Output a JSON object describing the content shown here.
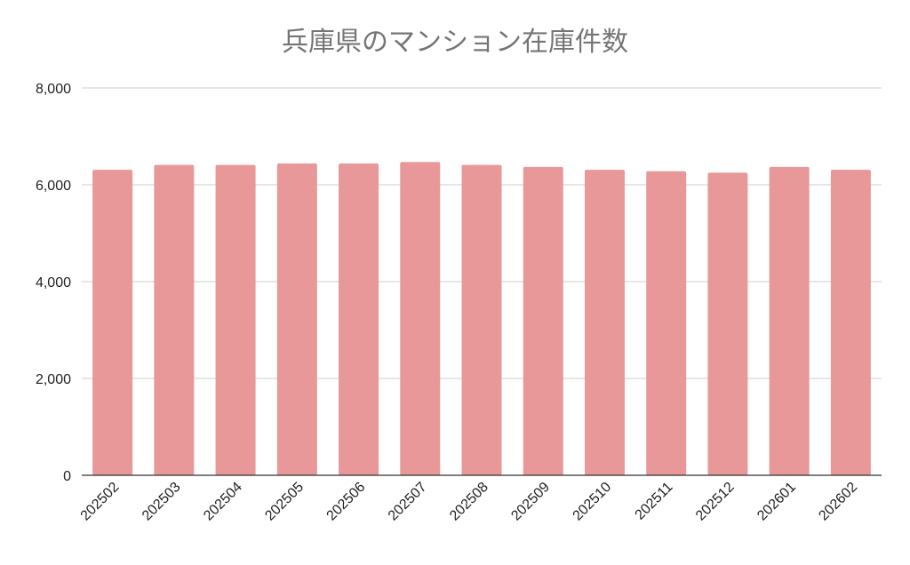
{
  "chart_data": {
    "type": "bar",
    "title": "兵庫県のマンション在庫件数",
    "categories": [
      "202502",
      "202503",
      "202504",
      "202505",
      "202506",
      "202507",
      "202508",
      "202509",
      "202510",
      "202511",
      "202512",
      "202601",
      "202602"
    ],
    "values": [
      6310,
      6410,
      6410,
      6440,
      6440,
      6470,
      6410,
      6370,
      6310,
      6280,
      6250,
      6370,
      6310
    ],
    "ylim": [
      0,
      8000
    ],
    "yticks": [
      0,
      2000,
      4000,
      6000,
      8000
    ],
    "ytick_labels": [
      "0",
      "2,000",
      "4,000",
      "6,000",
      "8,000"
    ],
    "grid": true,
    "legend": "none",
    "bar_color": "#e89898"
  }
}
